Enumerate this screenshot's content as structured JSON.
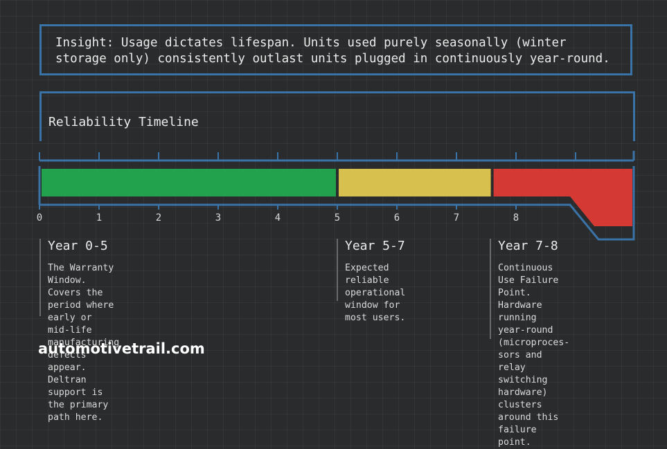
{
  "insight": {
    "text": "Insight: Usage dictates lifespan. Units used purely seasonally (winter storage only) consistently outlast units plugged in continuously year-round."
  },
  "timeline": {
    "title": "Reliability Timeline",
    "axis": {
      "min": 0,
      "max": 10,
      "ticks": [
        "0",
        "1",
        "2",
        "3",
        "4",
        "5",
        "6",
        "7",
        "8"
      ]
    },
    "segments": [
      {
        "label": "Year 0-5",
        "start": 0,
        "end": 5,
        "color": "#23a24d"
      },
      {
        "label": "Year 5-7",
        "start": 5,
        "end": 7.6,
        "color": "#d8c04e"
      },
      {
        "label": "Year 7-8",
        "start": 7.6,
        "end": 10,
        "color": "#d43a33"
      }
    ]
  },
  "sections": [
    {
      "title": "Year 0-5",
      "description": "The Warranty Window.\nCovers the period where early or\nmid-life manufacturing defects appear.\nDeltran support is the primary path here."
    },
    {
      "title": "Year 5-7",
      "description": "Expected reliable\noperational window for\nmost users."
    },
    {
      "title": "Year 7-8",
      "description": "Continuous Use Failure\nPoint. Hardware running\nyear-round (microproces-\nsors and relay switching\nhardware) clusters\naround this failure point."
    }
  ],
  "colors": {
    "frame": "#3a73a8",
    "background": "#2a2b2c"
  },
  "watermark": "automotivetrail.com"
}
